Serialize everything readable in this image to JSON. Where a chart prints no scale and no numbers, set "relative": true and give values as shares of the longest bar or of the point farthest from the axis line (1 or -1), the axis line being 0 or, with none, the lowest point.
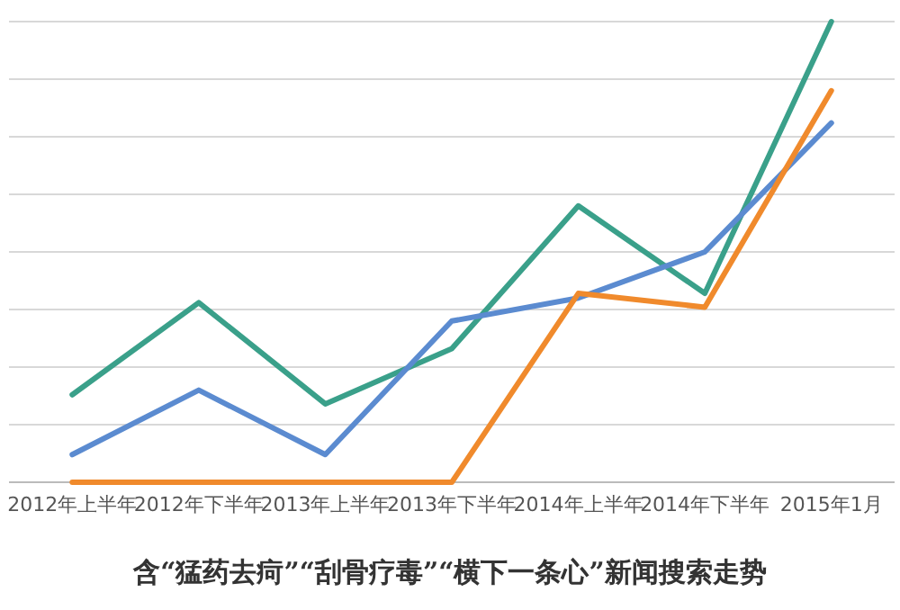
{
  "chart_data": {
    "type": "line",
    "title": "含“猛药去疴”“刮骨疗毒”“横下一条心”新闻搜索走势",
    "relative": true,
    "grid": "y",
    "categories": [
      "2012年上半年",
      "2012年下半年",
      "2013年上半年",
      "2013年下半年",
      "2014年上半年",
      "2014年下半年",
      "2015年1月"
    ],
    "series": [
      {
        "color": "#3aa08a",
        "values": [
          0.19,
          0.39,
          0.17,
          0.29,
          0.6,
          0.41,
          1
        ]
      },
      {
        "color": "#5b8bd0",
        "values": [
          0.06,
          0.2,
          0.06,
          0.35,
          0.4,
          0.5,
          0.78
        ]
      },
      {
        "color": "#f08a2c",
        "values": [
          0,
          0,
          0,
          0,
          0.41,
          0.38,
          0.85
        ]
      }
    ]
  }
}
